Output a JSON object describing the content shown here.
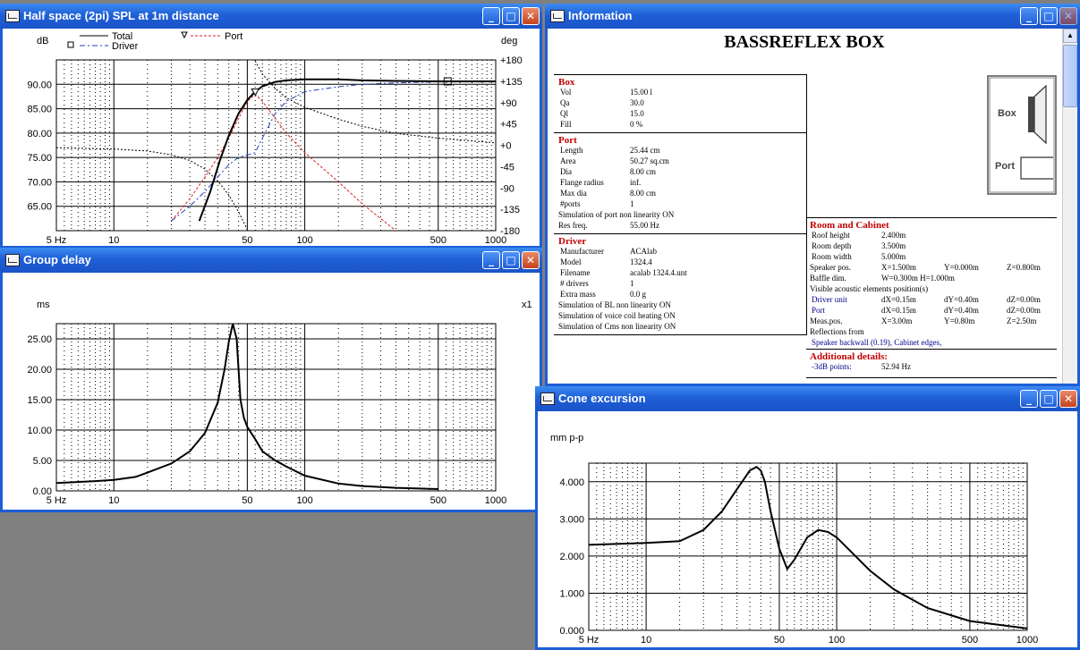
{
  "windows": {
    "spl": {
      "title": "Half space (2pi) SPL at 1m distance"
    },
    "group": {
      "title": "Group delay"
    },
    "info": {
      "title": "Information"
    },
    "cone": {
      "title": "Cone excursion"
    }
  },
  "buttons": {
    "minimize": "_",
    "maximize": "□",
    "close": "✕"
  },
  "colors": {
    "title_bar": "#1e5fd6",
    "desktop": "#808080",
    "port_curve": "#e02020",
    "driver_curve": "#1a3fc0",
    "info_heading": "#c00000"
  },
  "chart_data": [
    {
      "type": "line",
      "name": "spl",
      "ylabel": "dB",
      "y2label": "deg",
      "x_scale": "log",
      "xlim": [
        5,
        1000
      ],
      "ylim": [
        60,
        95
      ],
      "y2lim": [
        -180,
        180
      ],
      "x_ticks": [
        "5 Hz",
        "10",
        "50",
        "100",
        "500",
        "1000"
      ],
      "y_ticks": [
        "90.00",
        "85.00",
        "80.00",
        "75.00",
        "70.00",
        "65.00"
      ],
      "y2_ticks": [
        "+180",
        "+135",
        "+90",
        "+45",
        "+0",
        "-45",
        "-90",
        "-135",
        "-180"
      ],
      "legend": [
        "Total",
        "Port",
        "Driver"
      ],
      "series": [
        {
          "name": "Total",
          "x": [
            28,
            32,
            36,
            40,
            45,
            50,
            55,
            60,
            70,
            80,
            100,
            150,
            200,
            300,
            500,
            1000
          ],
          "y": [
            62,
            68,
            74.5,
            79.5,
            84,
            86.8,
            88.5,
            89.6,
            90.5,
            90.8,
            91,
            91,
            90.8,
            90.7,
            90.6,
            90.6
          ]
        },
        {
          "name": "Port",
          "x": [
            20,
            25,
            30,
            35,
            40,
            45,
            50,
            55,
            60,
            70,
            80,
            100,
            150,
            200,
            300
          ],
          "y": [
            62,
            66.5,
            71,
            75,
            79,
            83,
            86.5,
            88,
            86.5,
            83,
            80,
            76,
            70,
            65.5,
            60
          ]
        },
        {
          "name": "Driver",
          "x": [
            20,
            25,
            30,
            35,
            40,
            45,
            50,
            55,
            60,
            70,
            80,
            100,
            150,
            200,
            300,
            500,
            1000
          ],
          "y": [
            62,
            65,
            68,
            71,
            73.5,
            75,
            75.5,
            76,
            79,
            84,
            86.5,
            88.5,
            89.5,
            90,
            90.3,
            90.5,
            90.5
          ]
        },
        {
          "name": "Phase",
          "x": [
            5,
            10,
            15,
            20,
            25,
            30,
            35,
            40,
            45,
            50,
            55,
            60,
            70,
            80,
            100,
            150,
            200,
            300,
            500,
            1000
          ],
          "y": [
            -5,
            -8,
            -12,
            -20,
            -32,
            -50,
            -75,
            -105,
            -140,
            -178,
            178,
            150,
            120,
            100,
            80,
            55,
            40,
            25,
            15,
            5
          ]
        }
      ]
    },
    {
      "type": "line",
      "name": "group-delay",
      "ylabel": "ms",
      "y2label": "x1",
      "x_scale": "log",
      "xlim": [
        5,
        1000
      ],
      "ylim": [
        0,
        27.5
      ],
      "x_ticks": [
        "5 Hz",
        "10",
        "50",
        "100",
        "500",
        "1000"
      ],
      "y_ticks": [
        "25.00",
        "20.00",
        "15.00",
        "10.00",
        "5.00",
        "0.00"
      ],
      "series": [
        {
          "name": "Group delay",
          "x": [
            5,
            8,
            10,
            13,
            15,
            20,
            25,
            30,
            35,
            38,
            40,
            42,
            44,
            46,
            48,
            50,
            55,
            60,
            70,
            80,
            100,
            150,
            200,
            300,
            500
          ],
          "y": [
            1.3,
            1.6,
            1.8,
            2.3,
            3,
            4.5,
            6.5,
            9.5,
            14.5,
            20,
            24.5,
            27.5,
            25,
            15,
            12,
            10.5,
            8.5,
            6.5,
            5,
            4,
            2.5,
            1.2,
            0.8,
            0.5,
            0.3
          ]
        }
      ]
    },
    {
      "type": "line",
      "name": "cone-excursion",
      "ylabel": "mm p-p",
      "x_scale": "log",
      "xlim": [
        5,
        1000
      ],
      "ylim": [
        0,
        4.5
      ],
      "x_ticks": [
        "5 Hz",
        "10",
        "50",
        "100",
        "500",
        "1000"
      ],
      "y_ticks": [
        "4.000",
        "3.000",
        "2.000",
        "1.000",
        "0.000"
      ],
      "series": [
        {
          "name": "Cone excursion",
          "x": [
            5,
            10,
            15,
            20,
            25,
            30,
            35,
            38,
            40,
            42,
            45,
            50,
            55,
            60,
            70,
            80,
            90,
            100,
            150,
            200,
            300,
            500,
            1000
          ],
          "y": [
            2.3,
            2.35,
            2.4,
            2.7,
            3.2,
            3.8,
            4.3,
            4.4,
            4.3,
            4.0,
            3.2,
            2.2,
            1.65,
            1.9,
            2.5,
            2.7,
            2.65,
            2.5,
            1.6,
            1.1,
            0.6,
            0.25,
            0.05
          ]
        }
      ]
    }
  ],
  "info": {
    "heading": "BASSREFLEX BOX",
    "box": {
      "title": "Box",
      "rows": [
        [
          "Vol",
          "15.00 l"
        ],
        [
          "Qa",
          "30.0"
        ],
        [
          "Ql",
          "15.0"
        ],
        [
          "Fill",
          "0 %"
        ]
      ]
    },
    "port": {
      "title": "Port",
      "rows": [
        [
          "Length",
          "25.44 cm"
        ],
        [
          "Area",
          "50.27 sq.cm"
        ],
        [
          "Dia",
          "8.00 cm"
        ],
        [
          "Flange radius",
          "inf."
        ],
        [
          "Max dia",
          "8.00 cm"
        ],
        [
          "#ports",
          "1"
        ]
      ],
      "note": "Simulation of port non linearity ON",
      "resfreq_label": "Res freq.",
      "resfreq_value": "55.00 Hz"
    },
    "driver": {
      "title": "Driver",
      "rows": [
        [
          "Manufacturer",
          "ACAlab"
        ],
        [
          "Model",
          "1324.4"
        ],
        [
          "Filename",
          "acalab 1324.4.unt"
        ],
        [
          "# drivers",
          "1"
        ],
        [
          "Extra mass",
          "0.0 g"
        ]
      ],
      "notes": [
        "Simulation of BL non linearity ON",
        "Simulation of voice coil heating ON",
        "Simulation of Cms non linearity ON"
      ]
    },
    "diagram": {
      "box_label": "Box",
      "port_label": "Port"
    },
    "room": {
      "title": "Room and Cabinet",
      "rows": [
        [
          "Roof height",
          "2.400m"
        ],
        [
          "Room depth",
          "3.500m"
        ],
        [
          "Room width",
          "5.000m"
        ]
      ],
      "speaker_pos": [
        "Speaker pos.",
        "X=1.500m",
        "Y=0.000m",
        "Z=0.800m"
      ],
      "baffle": [
        "Baffle dim.",
        "W=0.300m H=1.000m"
      ],
      "visible": "Visible acoustic elements position(s)",
      "driver_unit": [
        "Driver unit",
        "dX=0.15m",
        "dY=0.40m",
        "dZ=0.00m"
      ],
      "port_pos": [
        "Port",
        "dX=0.15m",
        "dY=0.40m",
        "dZ=0.00m"
      ],
      "meas_pos": [
        "Meas.pos.",
        "X=3.00m",
        "Y=0.80m",
        "Z=2.50m"
      ],
      "reflections": "Reflections from",
      "reflections_list": "Speaker backwall (0.19), Cabinet edges,"
    },
    "additional": {
      "title": "Additional details:",
      "label": "-3dB points:",
      "value": "52.94 Hz"
    }
  }
}
